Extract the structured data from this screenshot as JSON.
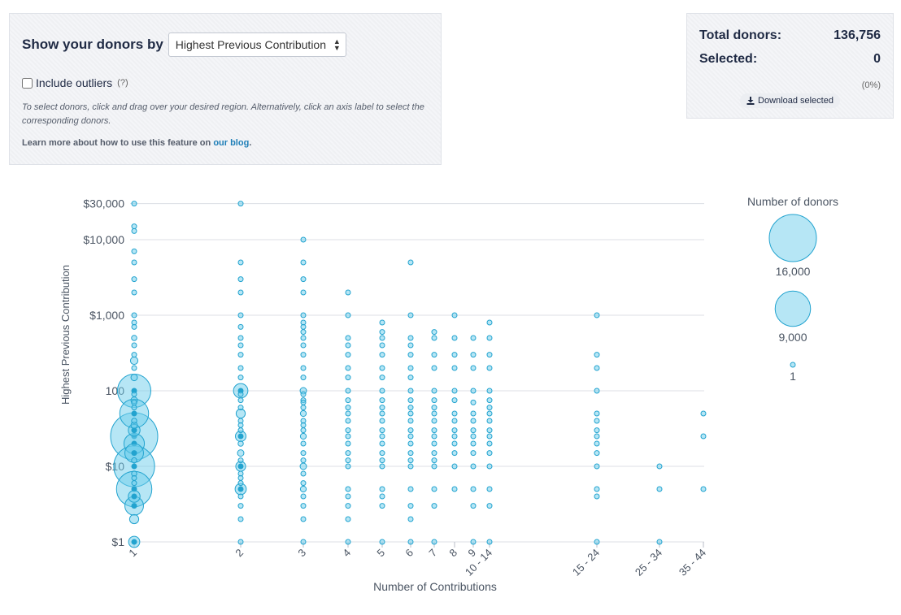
{
  "controls": {
    "show_label": "Show your donors by",
    "select_value": "Highest Previous Contribution",
    "outliers_label": "Include outliers",
    "outliers_help": "(?)",
    "instructions": "To select donors, click and drag over your desired region. Alternatively, click an axis label to select the corresponding donors.",
    "learn_prefix": "Learn more about how to use this feature on",
    "learn_link": "our blog",
    "learn_suffix": "."
  },
  "stats": {
    "total_label": "Total donors:",
    "total_value": "136,756",
    "selected_label": "Selected:",
    "selected_value": "0",
    "selected_pct": "(0%)",
    "download_label": "Download selected"
  },
  "colors": {
    "bubble_fill": "#6ecdec",
    "bubble_stroke": "#22a3cf",
    "grid": "#dcdfe5",
    "text": "#4b5563"
  },
  "chart_data": {
    "type": "scatter",
    "title": "",
    "xlabel": "Number of Contributions",
    "ylabel": "Highest Previous Contribution",
    "y_scale": "log",
    "ylim": [
      1,
      30000
    ],
    "y_ticks": [
      {
        "value": 1,
        "label": "$1"
      },
      {
        "value": 10,
        "label": "$10"
      },
      {
        "value": 100,
        "label": "100"
      },
      {
        "value": 1000,
        "label": "$1,000"
      },
      {
        "value": 10000,
        "label": "$10,000"
      },
      {
        "value": 30000,
        "label": "$30,000"
      }
    ],
    "categories": [
      "1",
      "2",
      "3",
      "4",
      "5",
      "6",
      "7",
      "8",
      "9",
      "10 - 14",
      "15 - 24",
      "25 - 34",
      "35 - 44"
    ],
    "legend": {
      "title": "Number of donors",
      "entries": [
        {
          "value": 16000,
          "label": "16,000"
        },
        {
          "value": 9000,
          "label": "9,000"
        },
        {
          "value": 1,
          "label": "1"
        }
      ]
    },
    "series": [
      {
        "category": "1",
        "points": [
          [
            30000,
            1
          ],
          [
            15000,
            1
          ],
          [
            13000,
            1
          ],
          [
            7000,
            1
          ],
          [
            5000,
            1
          ],
          [
            3000,
            1
          ],
          [
            2000,
            2
          ],
          [
            1000,
            100
          ],
          [
            800,
            30
          ],
          [
            700,
            20
          ],
          [
            500,
            200
          ],
          [
            400,
            50
          ],
          [
            300,
            40
          ],
          [
            250,
            400
          ],
          [
            200,
            100
          ],
          [
            150,
            300
          ],
          [
            100,
            8000
          ],
          [
            90,
            100
          ],
          [
            75,
            300
          ],
          [
            70,
            200
          ],
          [
            60,
            100
          ],
          [
            50,
            6000
          ],
          [
            40,
            200
          ],
          [
            35,
            300
          ],
          [
            30,
            1000
          ],
          [
            25,
            16000
          ],
          [
            20,
            3000
          ],
          [
            15,
            2500
          ],
          [
            12,
            200
          ],
          [
            10,
            12000
          ],
          [
            8,
            200
          ],
          [
            7,
            100
          ],
          [
            6,
            50
          ],
          [
            5,
            9000
          ],
          [
            4,
            1000
          ],
          [
            3,
            2500
          ],
          [
            2,
            600
          ],
          [
            1,
            900
          ]
        ]
      },
      {
        "category": "2",
        "points": [
          [
            30000,
            1
          ],
          [
            5000,
            1
          ],
          [
            3000,
            1
          ],
          [
            2000,
            1
          ],
          [
            1000,
            20
          ],
          [
            700,
            10
          ],
          [
            500,
            40
          ],
          [
            400,
            20
          ],
          [
            300,
            60
          ],
          [
            200,
            50
          ],
          [
            150,
            40
          ],
          [
            100,
            1500
          ],
          [
            90,
            50
          ],
          [
            75,
            100
          ],
          [
            60,
            30
          ],
          [
            50,
            600
          ],
          [
            40,
            60
          ],
          [
            35,
            40
          ],
          [
            30,
            80
          ],
          [
            25,
            800
          ],
          [
            20,
            200
          ],
          [
            15,
            300
          ],
          [
            12,
            80
          ],
          [
            10,
            700
          ],
          [
            8,
            20
          ],
          [
            7,
            20
          ],
          [
            6,
            10
          ],
          [
            5,
            900
          ],
          [
            4,
            50
          ],
          [
            3,
            100
          ],
          [
            2,
            30
          ],
          [
            1,
            40
          ]
        ]
      },
      {
        "category": "3",
        "points": [
          [
            10000,
            1
          ],
          [
            5000,
            1
          ],
          [
            3000,
            1
          ],
          [
            2000,
            1
          ],
          [
            1000,
            10
          ],
          [
            800,
            5
          ],
          [
            700,
            3
          ],
          [
            600,
            3
          ],
          [
            500,
            30
          ],
          [
            400,
            10
          ],
          [
            300,
            40
          ],
          [
            200,
            40
          ],
          [
            150,
            40
          ],
          [
            100,
            300
          ],
          [
            90,
            30
          ],
          [
            75,
            80
          ],
          [
            70,
            20
          ],
          [
            60,
            20
          ],
          [
            50,
            250
          ],
          [
            40,
            80
          ],
          [
            35,
            30
          ],
          [
            30,
            60
          ],
          [
            25,
            250
          ],
          [
            20,
            100
          ],
          [
            15,
            150
          ],
          [
            12,
            40
          ],
          [
            10,
            300
          ],
          [
            8,
            10
          ],
          [
            6,
            5
          ],
          [
            5,
            250
          ],
          [
            4,
            20
          ],
          [
            3,
            40
          ],
          [
            2,
            10
          ],
          [
            1,
            10
          ]
        ]
      },
      {
        "category": "4",
        "points": [
          [
            2000,
            10
          ],
          [
            1000,
            15
          ],
          [
            500,
            20
          ],
          [
            400,
            10
          ],
          [
            300,
            20
          ],
          [
            200,
            10
          ],
          [
            150,
            10
          ],
          [
            100,
            120
          ],
          [
            75,
            40
          ],
          [
            60,
            10
          ],
          [
            50,
            100
          ],
          [
            40,
            50
          ],
          [
            30,
            40
          ],
          [
            25,
            100
          ],
          [
            20,
            50
          ],
          [
            15,
            50
          ],
          [
            12,
            20
          ],
          [
            10,
            100
          ],
          [
            5,
            40
          ],
          [
            4,
            20
          ],
          [
            3,
            10
          ],
          [
            2,
            3
          ],
          [
            1,
            10
          ]
        ]
      },
      {
        "category": "5",
        "points": [
          [
            800,
            5
          ],
          [
            600,
            5
          ],
          [
            500,
            10
          ],
          [
            400,
            3
          ],
          [
            300,
            10
          ],
          [
            200,
            10
          ],
          [
            150,
            5
          ],
          [
            100,
            50
          ],
          [
            75,
            20
          ],
          [
            60,
            10
          ],
          [
            50,
            40
          ],
          [
            40,
            20
          ],
          [
            30,
            20
          ],
          [
            25,
            40
          ],
          [
            20,
            20
          ],
          [
            15,
            20
          ],
          [
            12,
            10
          ],
          [
            10,
            40
          ],
          [
            5,
            20
          ],
          [
            4,
            5
          ],
          [
            3,
            3
          ],
          [
            1,
            3
          ]
        ]
      },
      {
        "category": "6",
        "points": [
          [
            5000,
            3
          ],
          [
            1000,
            3
          ],
          [
            500,
            5
          ],
          [
            400,
            3
          ],
          [
            300,
            10
          ],
          [
            200,
            5
          ],
          [
            150,
            5
          ],
          [
            100,
            30
          ],
          [
            75,
            10
          ],
          [
            60,
            5
          ],
          [
            50,
            20
          ],
          [
            40,
            10
          ],
          [
            30,
            10
          ],
          [
            25,
            20
          ],
          [
            20,
            10
          ],
          [
            15,
            10
          ],
          [
            12,
            5
          ],
          [
            10,
            20
          ],
          [
            5,
            10
          ],
          [
            3,
            3
          ],
          [
            2,
            3
          ],
          [
            1,
            3
          ]
        ]
      },
      {
        "category": "7",
        "points": [
          [
            600,
            3
          ],
          [
            500,
            3
          ],
          [
            300,
            5
          ],
          [
            200,
            3
          ],
          [
            100,
            15
          ],
          [
            75,
            5
          ],
          [
            60,
            3
          ],
          [
            50,
            10
          ],
          [
            40,
            3
          ],
          [
            30,
            3
          ],
          [
            25,
            10
          ],
          [
            20,
            5
          ],
          [
            15,
            5
          ],
          [
            12,
            3
          ],
          [
            10,
            10
          ],
          [
            5,
            5
          ],
          [
            3,
            3
          ],
          [
            1,
            3
          ]
        ]
      },
      {
        "category": "8",
        "points": [
          [
            1000,
            3
          ],
          [
            500,
            3
          ],
          [
            300,
            5
          ],
          [
            200,
            3
          ],
          [
            100,
            10
          ],
          [
            75,
            3
          ],
          [
            50,
            10
          ],
          [
            40,
            3
          ],
          [
            30,
            5
          ],
          [
            25,
            10
          ],
          [
            20,
            5
          ],
          [
            15,
            5
          ],
          [
            10,
            10
          ],
          [
            5,
            5
          ]
        ]
      },
      {
        "category": "9",
        "points": [
          [
            500,
            3
          ],
          [
            300,
            5
          ],
          [
            200,
            3
          ],
          [
            100,
            10
          ],
          [
            70,
            3
          ],
          [
            50,
            10
          ],
          [
            40,
            5
          ],
          [
            30,
            3
          ],
          [
            25,
            10
          ],
          [
            20,
            5
          ],
          [
            15,
            5
          ],
          [
            10,
            10
          ],
          [
            5,
            5
          ],
          [
            3,
            3
          ],
          [
            1,
            3
          ]
        ]
      },
      {
        "category": "10 - 14",
        "points": [
          [
            800,
            3
          ],
          [
            500,
            3
          ],
          [
            300,
            5
          ],
          [
            200,
            3
          ],
          [
            100,
            10
          ],
          [
            75,
            5
          ],
          [
            60,
            3
          ],
          [
            50,
            10
          ],
          [
            40,
            5
          ],
          [
            30,
            5
          ],
          [
            25,
            10
          ],
          [
            20,
            5
          ],
          [
            15,
            5
          ],
          [
            10,
            10
          ],
          [
            5,
            5
          ],
          [
            3,
            3
          ],
          [
            1,
            5
          ]
        ]
      },
      {
        "category": "15 - 24",
        "points": [
          [
            1000,
            3
          ],
          [
            300,
            3
          ],
          [
            200,
            3
          ],
          [
            100,
            5
          ],
          [
            50,
            3
          ],
          [
            40,
            3
          ],
          [
            30,
            3
          ],
          [
            25,
            5
          ],
          [
            20,
            3
          ],
          [
            15,
            3
          ],
          [
            10,
            5
          ],
          [
            5,
            5
          ],
          [
            4,
            3
          ],
          [
            1,
            3
          ]
        ]
      },
      {
        "category": "25 - 34",
        "points": [
          [
            10,
            3
          ],
          [
            5,
            3
          ],
          [
            1,
            3
          ]
        ]
      },
      {
        "category": "35 - 44",
        "points": [
          [
            50,
            3
          ],
          [
            25,
            3
          ],
          [
            5,
            3
          ]
        ]
      }
    ]
  }
}
